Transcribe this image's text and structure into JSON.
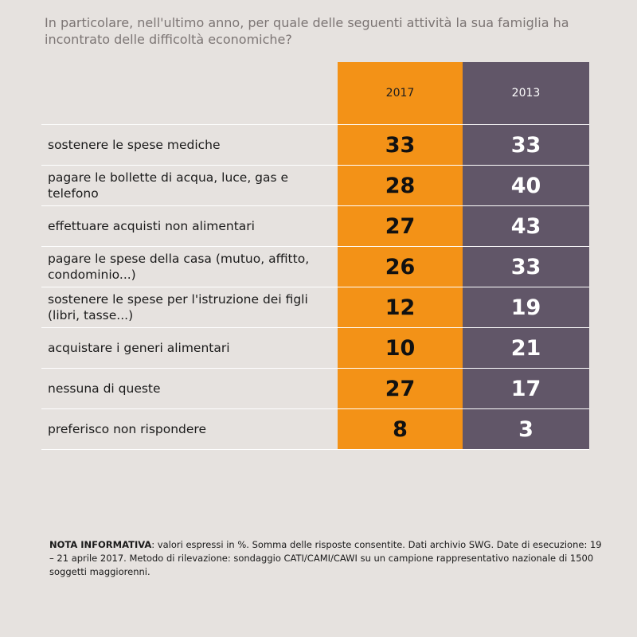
{
  "question": "In particolare, nell'ultimo anno, per quale delle seguenti attività la sua famiglia ha incontrato delle difficoltà economiche?",
  "colors": {
    "col_2017": "#f39217",
    "col_2013": "#615668",
    "background": "#e6e2df"
  },
  "chart_data": {
    "type": "table",
    "columns": [
      "2017",
      "2013"
    ],
    "rows": [
      {
        "label": "sostenere le spese mediche",
        "v2017": "33",
        "v2013": "33"
      },
      {
        "label": "pagare le bollette di acqua, luce, gas e telefono",
        "v2017": "28",
        "v2013": "40"
      },
      {
        "label": "effettuare acquisti non alimentari",
        "v2017": "27",
        "v2013": "43"
      },
      {
        "label": "pagare le spese della casa (mutuo, affitto, condominio...)",
        "v2017": "26",
        "v2013": "33"
      },
      {
        "label": "sostenere le spese per l'istruzione dei figli (libri, tasse...)",
        "v2017": "12",
        "v2013": "19"
      },
      {
        "label": "acquistare i generi alimentari",
        "v2017": "10",
        "v2013": "21"
      },
      {
        "label": "nessuna di queste",
        "v2017": "27",
        "v2013": "17"
      },
      {
        "label": "preferisco non rispondere",
        "v2017": "8",
        "v2013": "3"
      }
    ]
  },
  "note": {
    "title": "NOTA INFORMATIVA",
    "text": ": valori espressi in %. Somma delle risposte consentite. Dati archivio SWG. Date di esecuzione: 19 – 21 aprile  2017. Metodo di rilevazione: sondaggio CATI/CAMI/CAWI su un campione rappresentativo nazionale di 1500 soggetti maggiorenni."
  }
}
